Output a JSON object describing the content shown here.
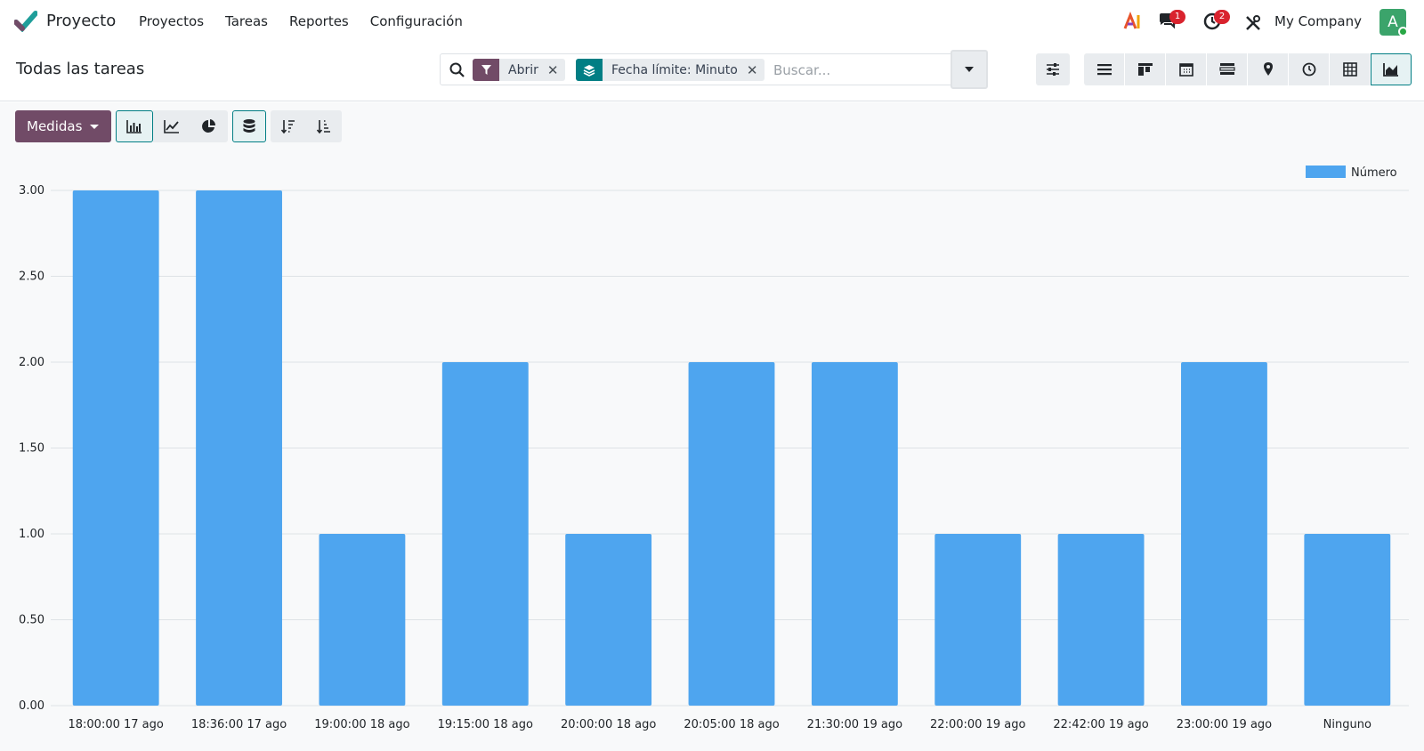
{
  "navbar": {
    "app_name": "Proyecto",
    "menu": [
      "Proyectos",
      "Tareas",
      "Reportes",
      "Configuración"
    ],
    "messages_badge": "1",
    "activity_badge": "2",
    "company": "My Company",
    "avatar_initial": "A"
  },
  "control_panel": {
    "title": "Todas las tareas",
    "facets": [
      {
        "label": "Abrir",
        "icon": "filter-icon",
        "color": "#714b67"
      },
      {
        "label": "Fecha límite: Minuto",
        "icon": "layers-icon",
        "color": "#017e84"
      }
    ],
    "search_placeholder": "Buscar...",
    "views": [
      "list-icon",
      "kanban-icon",
      "calendar-icon",
      "gantt-icon",
      "map-icon",
      "activity-icon",
      "pivot-icon",
      "graph-icon"
    ],
    "active_view": "graph-icon"
  },
  "graph_toolbar": {
    "measures_label": "Medidas",
    "chart_types": [
      "bar-chart-icon",
      "line-chart-icon",
      "pie-chart-icon"
    ],
    "active_chart_type": "bar-chart-icon",
    "stacked_active": true
  },
  "chart_data": {
    "type": "bar",
    "categories": [
      "18:00:00 17 ago",
      "18:36:00 17 ago",
      "19:00:00 18 ago",
      "19:15:00 18 ago",
      "20:00:00 18 ago",
      "20:05:00 18 ago",
      "21:30:00 19 ago",
      "22:00:00 19 ago",
      "22:42:00 19 ago",
      "23:00:00 19 ago",
      "Ninguno"
    ],
    "series": [
      {
        "name": "Número",
        "values": [
          3,
          3,
          1,
          2,
          1,
          2,
          2,
          1,
          1,
          2,
          1
        ],
        "color": "#4ea5ef"
      }
    ],
    "yticks": [
      "0.00",
      "0.50",
      "1.00",
      "1.50",
      "2.00",
      "2.50",
      "3.00"
    ],
    "ylim": [
      0,
      3
    ],
    "grid": true,
    "legend": "top-right"
  }
}
